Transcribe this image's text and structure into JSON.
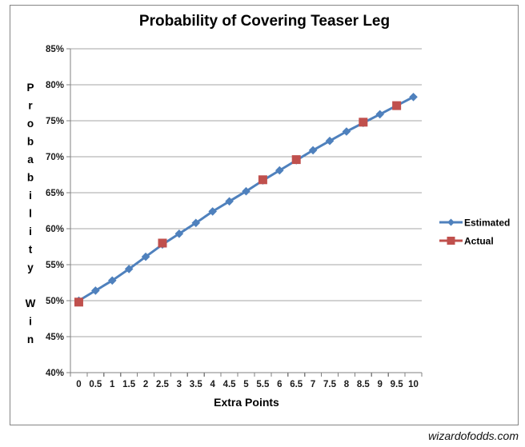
{
  "watermark": "wizardofodds.com",
  "colors": {
    "estimated": "#4F81BD",
    "actual": "#C0504D",
    "grid": "#A6A6A6",
    "axis": "#808080",
    "border": "#848484",
    "tick_text": "#1a1a1a"
  },
  "chart_data": {
    "type": "line",
    "title": "Probability of Covering Teaser Leg",
    "xlabel": "Extra Points",
    "ylabel": "Probability Win",
    "ylabel_rendering": "stacked-letters",
    "categories": [
      "0",
      "0.5",
      "1",
      "1.5",
      "2",
      "2.5",
      "3",
      "3.5",
      "4",
      "4.5",
      "5",
      "5.5",
      "6",
      "6.5",
      "7",
      "7.5",
      "8",
      "8.5",
      "9",
      "9.5",
      "10"
    ],
    "ylim": [
      40,
      85
    ],
    "ytick_step": 5,
    "ytick_suffix": "%",
    "grid": "horizontal",
    "legend_position": "right",
    "series": [
      {
        "name": "Estimated",
        "marker": "diamond",
        "color": "#4F81BD",
        "values": [
          50.0,
          51.4,
          52.8,
          54.4,
          56.1,
          57.8,
          59.3,
          60.8,
          62.4,
          63.8,
          65.2,
          66.7,
          68.1,
          69.5,
          70.9,
          72.2,
          73.5,
          74.7,
          75.9,
          77.1,
          78.3
        ]
      },
      {
        "name": "Actual",
        "marker": "square",
        "color": "#C0504D",
        "points": [
          [
            0,
            49.8
          ],
          [
            2.5,
            58.0
          ],
          [
            5.5,
            66.8
          ],
          [
            6.5,
            69.6
          ],
          [
            8.5,
            74.8
          ],
          [
            9.5,
            77.1
          ]
        ]
      }
    ]
  }
}
